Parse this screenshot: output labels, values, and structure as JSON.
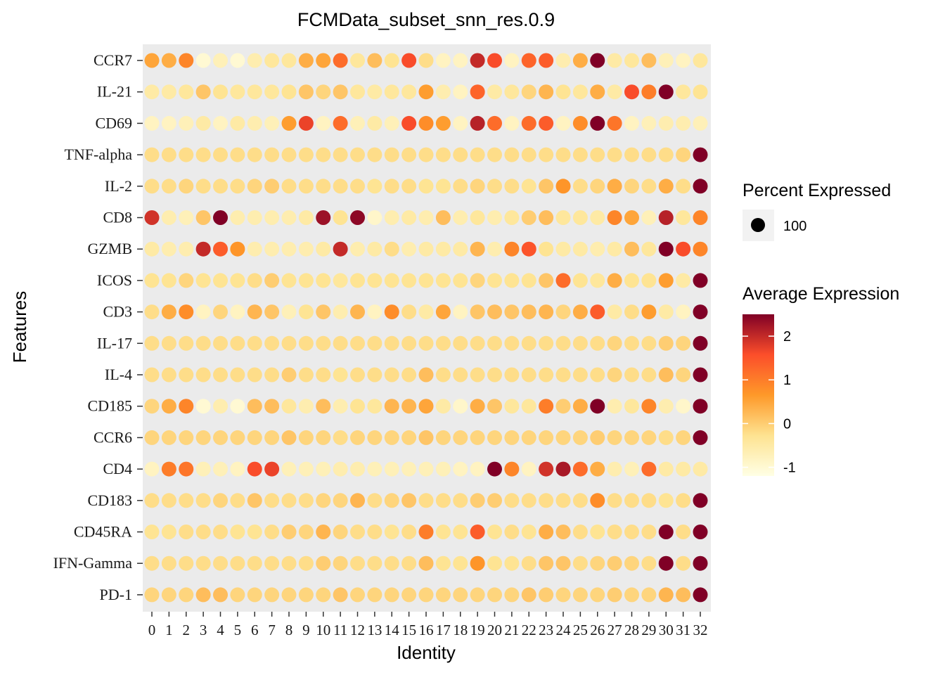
{
  "chart_data": {
    "type": "dotplot",
    "title": "FCMData_subset_snn_res.0.9",
    "xlabel": "Identity",
    "ylabel": "Features",
    "clusters": [
      "0",
      "1",
      "2",
      "3",
      "4",
      "5",
      "6",
      "7",
      "8",
      "9",
      "10",
      "11",
      "12",
      "13",
      "14",
      "15",
      "16",
      "17",
      "18",
      "19",
      "20",
      "21",
      "22",
      "23",
      "24",
      "25",
      "26",
      "27",
      "28",
      "29",
      "30",
      "31",
      "32"
    ],
    "features": [
      "CCR7",
      "IL-21",
      "CD69",
      "TNF-alpha",
      "IL-2",
      "CD8",
      "GZMB",
      "ICOS",
      "CD3",
      "IL-17",
      "IL-4",
      "CD185",
      "CCR6",
      "CD4",
      "CD183",
      "CD45RA",
      "IFN-Gamma",
      "PD-1"
    ],
    "avg_expression": [
      [
        0.5,
        0.4,
        0.9,
        -1.0,
        -0.7,
        -1.0,
        -0.6,
        -0.4,
        -0.4,
        0.4,
        0.5,
        1.2,
        -0.4,
        0.2,
        -0.3,
        1.6,
        -0.2,
        -0.8,
        -0.8,
        2.0,
        1.6,
        -0.8,
        1.3,
        1.4,
        -0.6,
        0.4,
        2.5,
        -0.5,
        -0.4,
        0.2,
        -0.7,
        -0.8,
        -0.4
      ],
      [
        -0.5,
        -0.5,
        -0.4,
        0.1,
        -0.3,
        -0.4,
        -0.4,
        -0.4,
        -0.3,
        0.1,
        -0.1,
        0.1,
        -0.4,
        -0.5,
        -0.4,
        -0.4,
        0.6,
        -0.6,
        -0.8,
        1.3,
        -0.5,
        -0.4,
        -0.1,
        0.3,
        -0.3,
        -0.4,
        0.4,
        -0.5,
        1.6,
        1.0,
        2.5,
        -0.4,
        -0.3
      ],
      [
        -0.8,
        -0.8,
        -0.7,
        -0.5,
        -0.8,
        -0.5,
        -0.6,
        -0.7,
        0.6,
        1.7,
        -0.8,
        1.2,
        -0.7,
        -0.5,
        -0.7,
        1.6,
        0.8,
        0.6,
        -0.8,
        2.1,
        1.2,
        -0.8,
        1.2,
        1.4,
        -0.8,
        0.8,
        2.5,
        1.1,
        -0.8,
        -0.7,
        -0.6,
        -0.6,
        -0.7
      ],
      [
        -0.2,
        -0.2,
        -0.2,
        -0.2,
        -0.2,
        -0.2,
        -0.2,
        -0.2,
        -0.2,
        -0.2,
        -0.2,
        -0.2,
        -0.2,
        -0.2,
        -0.2,
        -0.2,
        -0.2,
        -0.2,
        -0.2,
        -0.2,
        -0.2,
        -0.2,
        -0.2,
        -0.2,
        -0.2,
        -0.2,
        -0.2,
        -0.2,
        -0.2,
        -0.2,
        -0.2,
        -0.1,
        2.5
      ],
      [
        -0.2,
        -0.2,
        -0.1,
        -0.2,
        -0.2,
        -0.2,
        -0.1,
        0.0,
        -0.2,
        -0.2,
        -0.2,
        -0.2,
        -0.2,
        -0.3,
        -0.2,
        -0.2,
        -0.3,
        -0.3,
        -0.2,
        -0.1,
        -0.2,
        -0.2,
        -0.3,
        0.1,
        0.7,
        -0.2,
        -0.1,
        0.4,
        -0.1,
        -0.2,
        0.4,
        -0.2,
        2.5
      ],
      [
        1.9,
        -0.6,
        -0.7,
        0.1,
        2.5,
        -0.6,
        -0.6,
        -0.6,
        -0.6,
        -0.5,
        2.3,
        -0.3,
        2.4,
        -0.9,
        -0.6,
        -0.5,
        -0.6,
        0.2,
        -0.6,
        -0.4,
        -0.6,
        -0.4,
        0.0,
        0.2,
        -0.4,
        -0.4,
        -0.5,
        0.9,
        0.5,
        -0.7,
        2.1,
        -0.4,
        0.9
      ],
      [
        -0.5,
        -0.6,
        -0.6,
        2.0,
        1.4,
        0.7,
        -0.6,
        -0.6,
        -0.6,
        -0.6,
        -0.5,
        2.0,
        -0.6,
        -0.5,
        -0.2,
        -0.6,
        -0.5,
        -0.5,
        -0.5,
        0.3,
        -0.6,
        0.9,
        1.5,
        -0.3,
        -0.5,
        -0.5,
        -0.6,
        -0.5,
        0.2,
        -0.4,
        2.5,
        1.6,
        0.9
      ],
      [
        -0.3,
        -0.3,
        -0.1,
        -0.3,
        -0.3,
        -0.3,
        -0.2,
        0.0,
        -0.3,
        -0.3,
        -0.3,
        -0.4,
        -0.3,
        -0.3,
        -0.3,
        -0.3,
        -0.3,
        -0.3,
        -0.3,
        -0.1,
        -0.3,
        -0.3,
        -0.3,
        0.1,
        1.2,
        -0.3,
        -0.4,
        0.4,
        -0.3,
        -0.3,
        0.6,
        -0.5,
        2.5
      ],
      [
        -0.2,
        0.4,
        0.8,
        -0.8,
        -0.1,
        -0.8,
        0.3,
        0.1,
        -0.7,
        -0.3,
        0.1,
        -0.6,
        0.3,
        -0.8,
        0.8,
        -0.2,
        -0.5,
        0.5,
        -0.8,
        0.1,
        0.2,
        0.1,
        0.2,
        0.3,
        -0.1,
        0.4,
        1.4,
        -0.5,
        -0.2,
        0.6,
        -0.5,
        -0.8,
        2.5
      ],
      [
        -0.2,
        -0.2,
        -0.2,
        -0.2,
        -0.2,
        -0.2,
        -0.2,
        -0.2,
        -0.2,
        -0.2,
        -0.2,
        -0.2,
        -0.2,
        -0.2,
        -0.2,
        -0.2,
        -0.2,
        -0.2,
        -0.2,
        -0.2,
        -0.2,
        -0.2,
        -0.2,
        -0.2,
        -0.2,
        -0.2,
        -0.2,
        -0.1,
        -0.2,
        -0.2,
        0.0,
        -0.1,
        2.5
      ],
      [
        -0.2,
        -0.2,
        -0.2,
        -0.2,
        -0.2,
        -0.2,
        -0.2,
        -0.2,
        0.0,
        -0.2,
        -0.2,
        -0.3,
        -0.2,
        -0.2,
        -0.2,
        -0.2,
        0.2,
        -0.2,
        -0.2,
        -0.2,
        -0.2,
        -0.2,
        -0.2,
        -0.2,
        -0.2,
        -0.2,
        -0.2,
        -0.1,
        -0.2,
        -0.2,
        0.2,
        -0.1,
        2.5
      ],
      [
        -0.1,
        0.4,
        0.9,
        -1.0,
        -0.6,
        -1.0,
        0.2,
        0.2,
        -0.4,
        -0.6,
        0.2,
        -0.6,
        -0.3,
        -0.4,
        0.3,
        0.3,
        0.5,
        -0.5,
        -0.9,
        0.4,
        0.1,
        -0.4,
        -0.4,
        1.0,
        0.0,
        0.4,
        2.5,
        -0.6,
        -0.4,
        0.9,
        -0.6,
        -0.9,
        2.5
      ],
      [
        -0.1,
        -0.1,
        -0.1,
        -0.1,
        -0.1,
        -0.1,
        -0.1,
        -0.1,
        0.1,
        -0.1,
        -0.1,
        -0.2,
        -0.1,
        -0.1,
        -0.1,
        -0.1,
        0.1,
        -0.1,
        -0.1,
        -0.1,
        -0.1,
        -0.1,
        -0.1,
        -0.1,
        -0.1,
        -0.1,
        0.0,
        -0.1,
        -0.1,
        -0.1,
        -0.2,
        -0.1,
        2.5
      ],
      [
        -0.8,
        1.0,
        1.1,
        -0.7,
        -0.7,
        -0.8,
        1.6,
        1.7,
        -0.7,
        -0.7,
        -0.7,
        -0.6,
        -0.6,
        -0.7,
        -0.7,
        -0.7,
        -0.7,
        -0.7,
        -0.8,
        -0.8,
        2.5,
        0.9,
        -0.8,
        1.9,
        2.2,
        1.2,
        0.4,
        -0.6,
        -0.7,
        1.2,
        -0.5,
        -0.5,
        -0.5
      ],
      [
        -0.2,
        -0.2,
        -0.2,
        -0.2,
        -0.1,
        -0.2,
        0.1,
        -0.2,
        -0.2,
        -0.2,
        -0.1,
        -0.1,
        0.3,
        -0.2,
        -0.1,
        0.1,
        -0.2,
        -0.2,
        -0.2,
        0.0,
        0.0,
        -0.2,
        -0.2,
        -0.2,
        -0.2,
        -0.2,
        0.8,
        -0.2,
        -0.2,
        -0.2,
        -0.3,
        -0.2,
        2.5
      ],
      [
        -0.3,
        -0.3,
        -0.2,
        -0.2,
        -0.2,
        -0.3,
        -0.3,
        -0.2,
        0.0,
        -0.1,
        0.3,
        -0.1,
        -0.2,
        -0.2,
        -0.3,
        -0.2,
        1.0,
        -0.3,
        -0.3,
        1.4,
        -0.3,
        -0.2,
        -0.3,
        0.4,
        0.2,
        -0.2,
        -0.3,
        -0.2,
        -0.2,
        -0.2,
        2.5,
        -0.2,
        2.5
      ],
      [
        -0.2,
        -0.2,
        -0.2,
        -0.2,
        -0.2,
        -0.2,
        -0.2,
        -0.2,
        -0.2,
        -0.2,
        0.0,
        -0.1,
        -0.2,
        -0.2,
        -0.2,
        -0.2,
        0.2,
        -0.3,
        -0.3,
        0.7,
        -0.3,
        -0.3,
        -0.2,
        0.1,
        0.1,
        -0.2,
        -0.1,
        0.0,
        -0.1,
        -0.2,
        2.5,
        -0.2,
        2.5
      ],
      [
        -0.1,
        -0.1,
        -0.1,
        0.2,
        0.2,
        -0.1,
        -0.1,
        -0.1,
        -0.1,
        -0.1,
        -0.1,
        0.1,
        -0.1,
        -0.1,
        -0.1,
        -0.1,
        -0.1,
        -0.1,
        -0.1,
        -0.1,
        -0.1,
        -0.1,
        0.1,
        0.0,
        -0.1,
        -0.1,
        -0.1,
        0.0,
        -0.1,
        -0.1,
        0.3,
        0.2,
        2.5
      ]
    ],
    "size_legend": {
      "title": "Percent Expressed",
      "entries": [
        100
      ]
    },
    "color_legend": {
      "title": "Average Expression",
      "range": [
        -1.2,
        2.5
      ],
      "ticks": [
        -1,
        0,
        1,
        2
      ],
      "colors": [
        "#FFFFE5",
        "#FEE391",
        "#FE9929",
        "#FC4E2A",
        "#800026"
      ]
    },
    "panel_background": "#EBEBEB"
  }
}
